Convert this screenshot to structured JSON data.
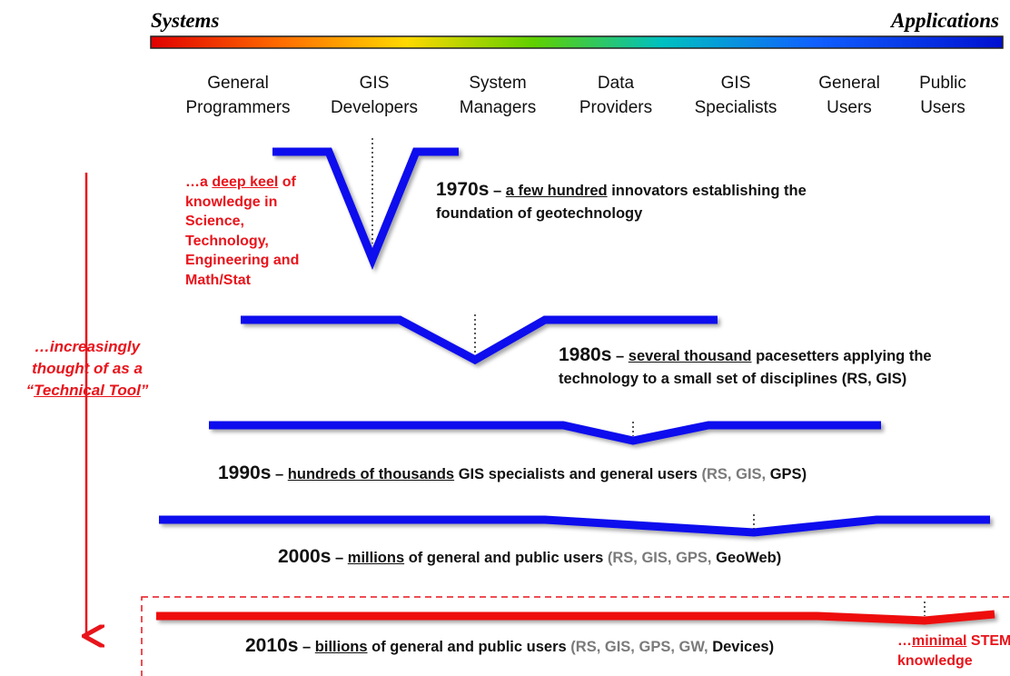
{
  "header": {
    "left": "Systems",
    "right": "Applications"
  },
  "columns": [
    [
      "General",
      "Programmers"
    ],
    [
      "GIS",
      "Developers"
    ],
    [
      "System",
      "Managers"
    ],
    [
      "Data",
      "Providers"
    ],
    [
      "GIS",
      "Specialists"
    ],
    [
      "General",
      "Users"
    ],
    [
      "Public",
      "Users"
    ]
  ],
  "eras": [
    {
      "decade": "1970s",
      "dash": "–",
      "emphasis": "a few hundred",
      "lines": [
        "innovators establishing the",
        "foundation of geotechnology"
      ]
    },
    {
      "decade": "1980s",
      "dash": "–",
      "emphasis": "several thousand",
      "lines": [
        "pacesetters applying the",
        "technology to a small set of disciplines (RS, GIS)"
      ]
    },
    {
      "decade": "1990s",
      "dash": "–",
      "emphasis": "hundreds of thousands",
      "lines": [
        "GIS specialists and general users"
      ],
      "tech": [
        "(RS,",
        "GIS,",
        "GPS)"
      ]
    },
    {
      "decade": "2000s",
      "dash": "–",
      "emphasis": "millions",
      "lines": [
        "of general and public users"
      ],
      "tech": [
        "(RS,",
        "GIS,",
        "GPS,",
        "GeoWeb)"
      ]
    },
    {
      "decade": "2010s",
      "dash": "–",
      "emphasis": "billions",
      "lines": [
        "of general and public users"
      ],
      "tech": [
        "(RS,",
        "GIS,",
        "GPS,",
        "GW,",
        "Devices)"
      ]
    }
  ],
  "keel_note": {
    "first": [
      "…a",
      "deep keel",
      "of"
    ],
    "lines": [
      "knowledge in",
      "Science,",
      "Technology,",
      "Engineering and",
      "Math/Stat"
    ]
  },
  "side_note": {
    "lines": [
      "…increasingly",
      "thought of as a"
    ],
    "last": [
      "“",
      "Technical Tool",
      "”"
    ]
  },
  "stem_note": {
    "first": [
      "…",
      "minimal",
      "STEM"
    ],
    "second": "knowledge"
  }
}
